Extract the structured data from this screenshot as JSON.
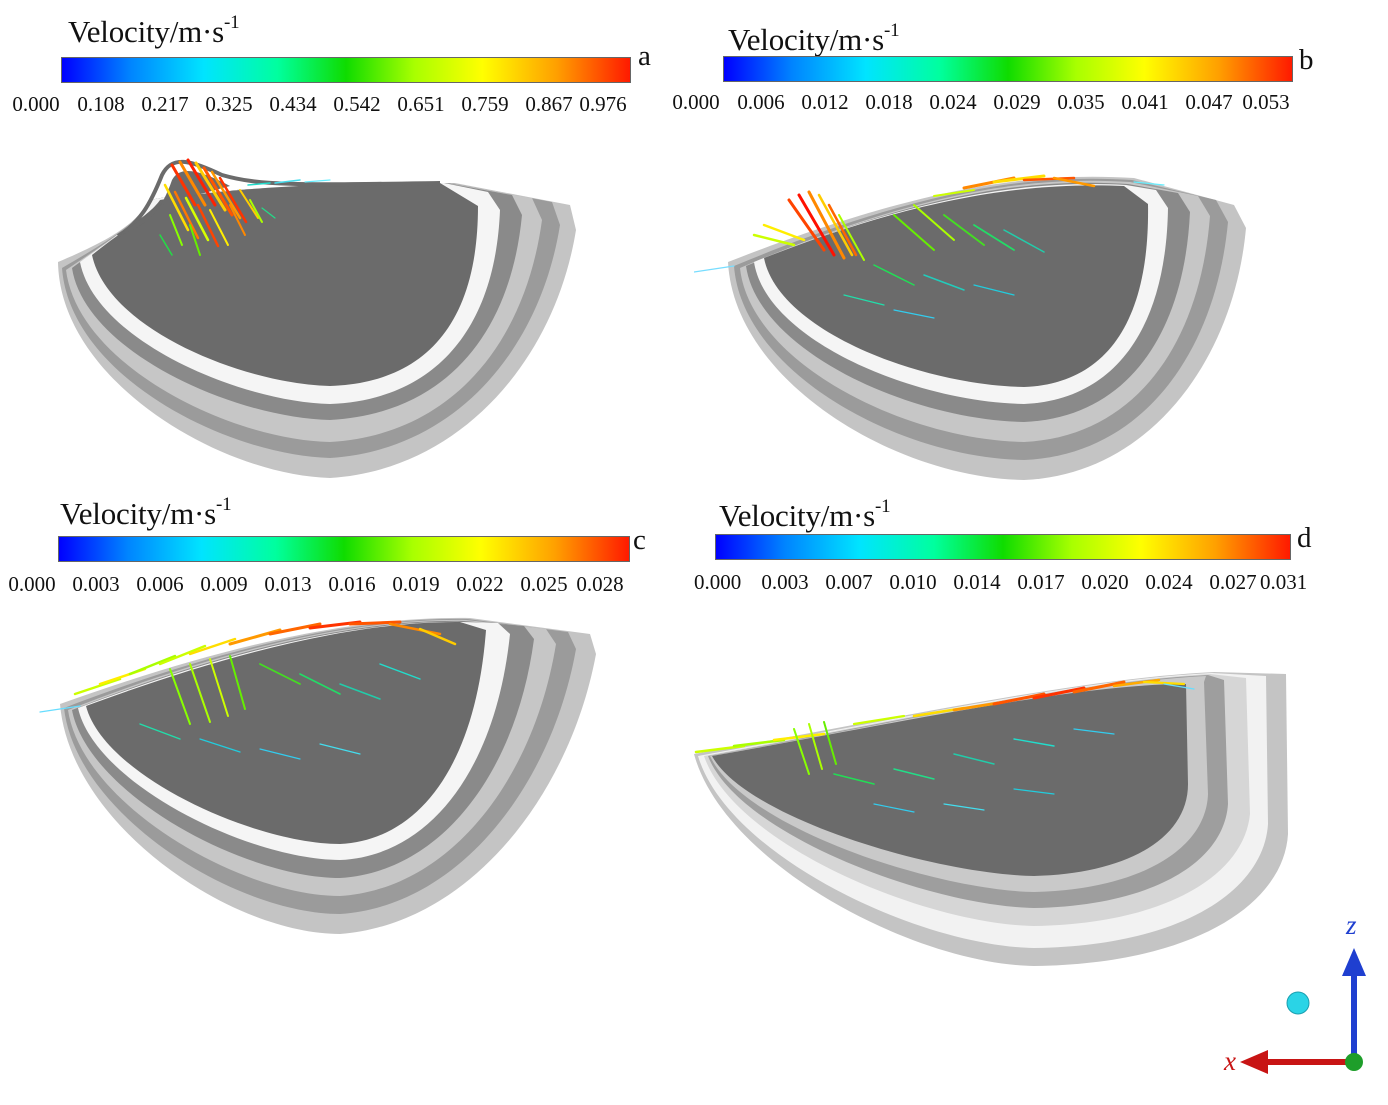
{
  "colorbar_title": "Velocity/m·s",
  "colorbar_exponent": "-1",
  "panels": [
    {
      "letter": "a",
      "ticks": [
        "0.000",
        "0.108",
        "0.217",
        "0.325",
        "0.434",
        "0.542",
        "0.651",
        "0.759",
        "0.867",
        "0.976"
      ]
    },
    {
      "letter": "b",
      "ticks": [
        "0.000",
        "0.006",
        "0.012",
        "0.018",
        "0.024",
        "0.029",
        "0.035",
        "0.041",
        "0.047",
        "0.053"
      ]
    },
    {
      "letter": "c",
      "ticks": [
        "0.000",
        "0.003",
        "0.006",
        "0.009",
        "0.013",
        "0.016",
        "0.019",
        "0.022",
        "0.025",
        "0.028"
      ]
    },
    {
      "letter": "d",
      "ticks": [
        "0.000",
        "0.003",
        "0.007",
        "0.010",
        "0.014",
        "0.017",
        "0.020",
        "0.024",
        "0.027",
        "0.031"
      ]
    }
  ],
  "axes": {
    "z": "z",
    "x": "x"
  },
  "colors": {
    "shell_dark": "#6b6b6b",
    "shell_mid": "#9a9a9a",
    "shell_light": "#c9c9c9",
    "shell_white": "#f3f3f3",
    "axis_z": "#1f3fd0",
    "axis_x": "#c81414"
  }
}
